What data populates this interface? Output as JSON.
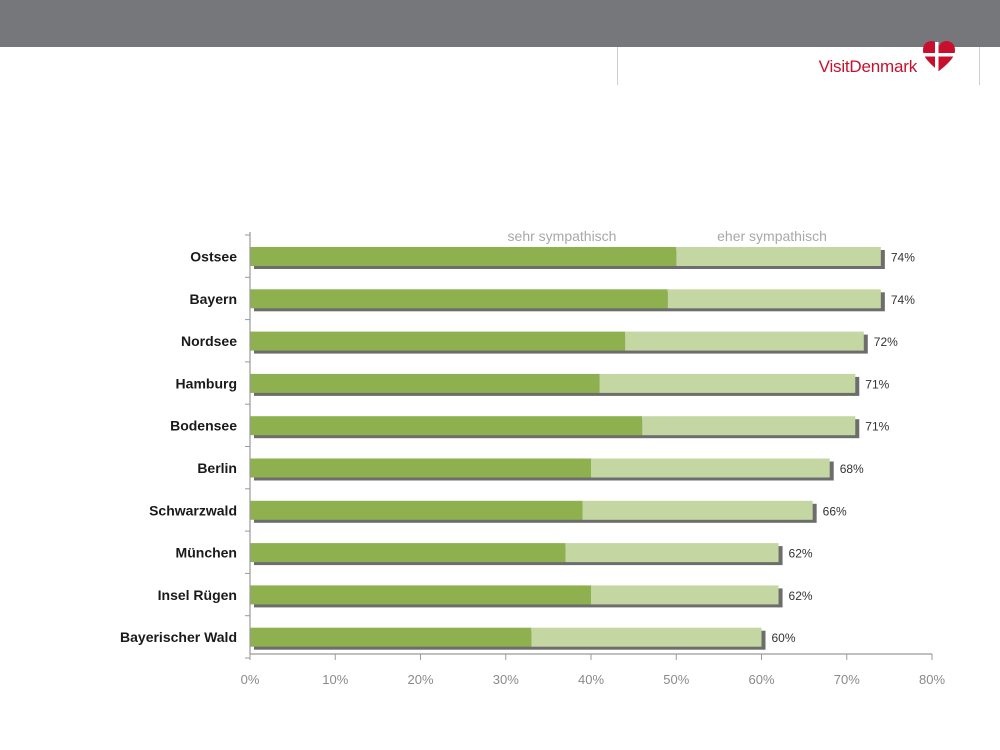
{
  "header": {
    "bar_color": "#76777a",
    "brand_name": "VisitDenmark",
    "brand_color": "#c8102e"
  },
  "colors": {
    "sehr": "#8eb04f",
    "eher": "#c4d7a2",
    "shadow": "#6d6d6d",
    "axis": "#9a9a9a"
  },
  "chart_data": {
    "type": "bar",
    "orientation": "horizontal",
    "stacked": true,
    "categories": [
      "Ostsee",
      "Bayern",
      "Nordsee",
      "Hamburg",
      "Bodensee",
      "Berlin",
      "Schwarzwald",
      "München",
      "Insel Rügen",
      "Bayerischer Wald"
    ],
    "series": [
      {
        "name": "sehr sympathisch",
        "values": [
          50,
          49,
          44,
          41,
          46,
          40,
          39,
          37,
          40,
          33
        ]
      },
      {
        "name": "eher sympathisch",
        "values": [
          24,
          25,
          28,
          30,
          25,
          28,
          27,
          25,
          22,
          27
        ]
      }
    ],
    "totals": [
      "74%",
      "74%",
      "72%",
      "71%",
      "71%",
      "68%",
      "66%",
      "62%",
      "62%",
      "60%"
    ],
    "x_ticks": [
      "0%",
      "10%",
      "20%",
      "30%",
      "40%",
      "50%",
      "60%",
      "70%",
      "80%"
    ],
    "xlim": [
      0,
      80
    ],
    "legend_position": "top",
    "grid": false
  }
}
